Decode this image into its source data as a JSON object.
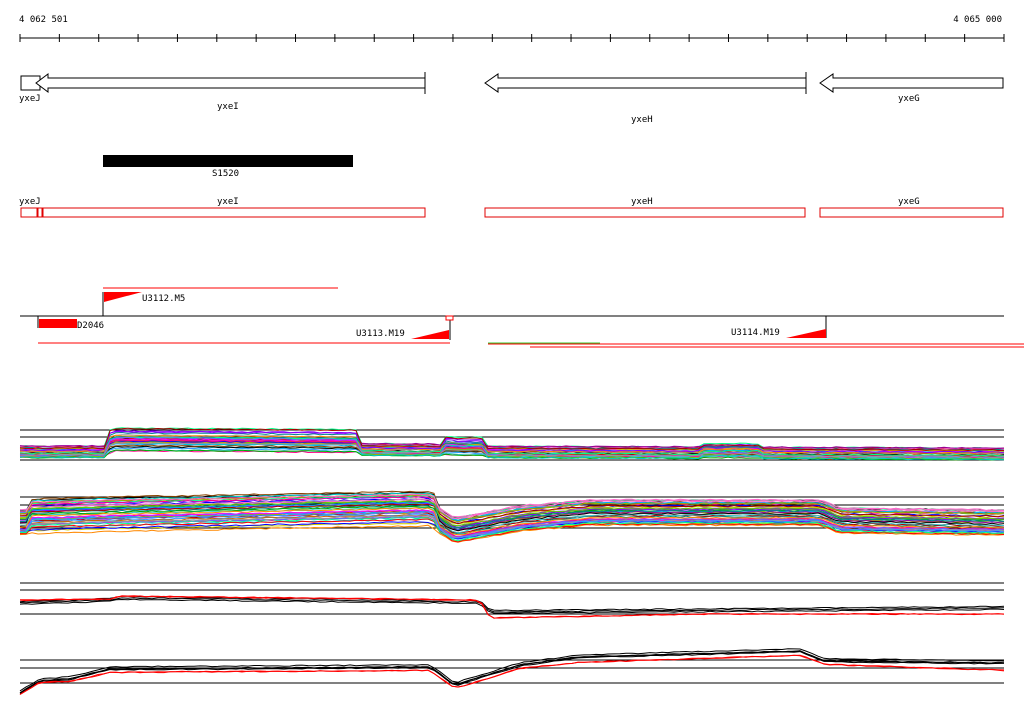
{
  "ruler": {
    "start_label": "4 062 501",
    "end_label": "4 065 000",
    "start": 4062501,
    "end": 4065000
  },
  "genes": [
    {
      "name": "yxeJ",
      "strand": "-"
    },
    {
      "name": "yxeI",
      "strand": "-"
    },
    {
      "name": "yxeH",
      "strand": "-"
    },
    {
      "name": "yxeG",
      "strand": "-"
    }
  ],
  "segment": {
    "name": "S1520"
  },
  "gene_boxes": [
    {
      "name": "yxeJ"
    },
    {
      "name": "yxeI"
    },
    {
      "name": "yxeH"
    },
    {
      "name": "yxeG"
    }
  ],
  "transcripts": [
    {
      "name": "U3112.M5"
    },
    {
      "name": "D2046"
    },
    {
      "name": "U3113.M19"
    },
    {
      "name": "U3114.M19"
    }
  ],
  "colors": {
    "gene_arrow": "#000000",
    "segment": "#000000",
    "gene_box": "#e00000",
    "transcript": "#ff0000"
  },
  "expression_panels": [
    {
      "type": "multi-condition profiles"
    },
    {
      "type": "multi-condition profiles"
    },
    {
      "type": "two-strand profiles",
      "series_colors": [
        "#000000",
        "#ff0000"
      ]
    },
    {
      "type": "two-strand profiles",
      "series_colors": [
        "#000000",
        "#ff0000"
      ]
    }
  ]
}
